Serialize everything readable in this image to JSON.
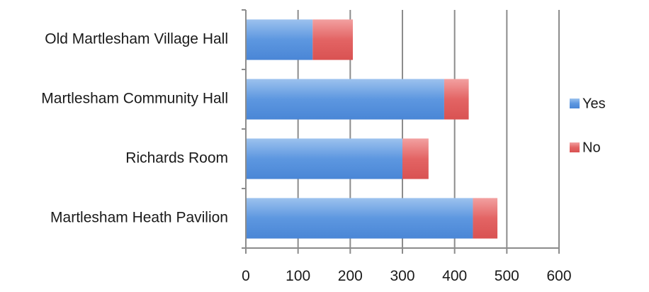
{
  "chart_data": {
    "type": "bar",
    "orientation": "horizontal",
    "stacked": true,
    "categories": [
      "Old Martlesham Village Hall",
      "Martlesham Community Hall",
      "Richards Room",
      "Martlesham Heath Pavilion"
    ],
    "series": [
      {
        "name": "Yes",
        "values": [
          128,
          380,
          300,
          435
        ],
        "color": "#5b9bd5"
      },
      {
        "name": "No",
        "values": [
          77,
          47,
          50,
          47
        ],
        "color": "#e05a5a"
      }
    ],
    "xlim": [
      0,
      600
    ],
    "xticks": [
      "0",
      "100",
      "200",
      "300",
      "400",
      "500",
      "600"
    ],
    "grid": "vertical",
    "legend_position": "right",
    "title": "",
    "xlabel": "",
    "ylabel": ""
  }
}
